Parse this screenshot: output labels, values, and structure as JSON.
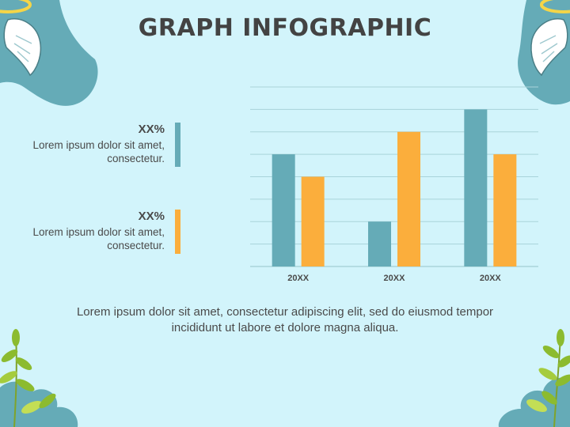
{
  "page": {
    "title": "GRAPH INFOGRAPHIC"
  },
  "legend": [
    {
      "percent": "XX%",
      "description": "Lorem ipsum dolor sit amet, consectetur.",
      "color": "#65abb7"
    },
    {
      "percent": "XX%",
      "description": "Lorem ipsum dolor sit amet, consectetur.",
      "color": "#fbae3c"
    }
  ],
  "footer": {
    "text": "Lorem ipsum dolor sit amet, consectetur adipiscing elit, sed do eiusmod tempor incididunt ut labore et dolore magna aliqua."
  },
  "colors": {
    "background": "#d2f4fb",
    "teal": "#65abb7",
    "orange": "#fbae3c",
    "grid": "#a9d3da",
    "leaf": "#8cbb2f",
    "wing": "#ffffff",
    "halo": "#f5d547"
  },
  "decorations": [
    "angel-wing-icon",
    "halo-icon",
    "leaf-icon",
    "cloud-icon"
  ],
  "chart_data": {
    "type": "bar",
    "categories": [
      "20XX",
      "20XX",
      "20XX"
    ],
    "series": [
      {
        "values": [
          5,
          2,
          7
        ],
        "color": "#65abb7"
      },
      {
        "values": [
          4,
          6,
          5
        ],
        "color": "#fbae3c"
      }
    ],
    "ylim": [
      0,
      8
    ],
    "grid": true,
    "xlabel": "",
    "ylabel": ""
  }
}
